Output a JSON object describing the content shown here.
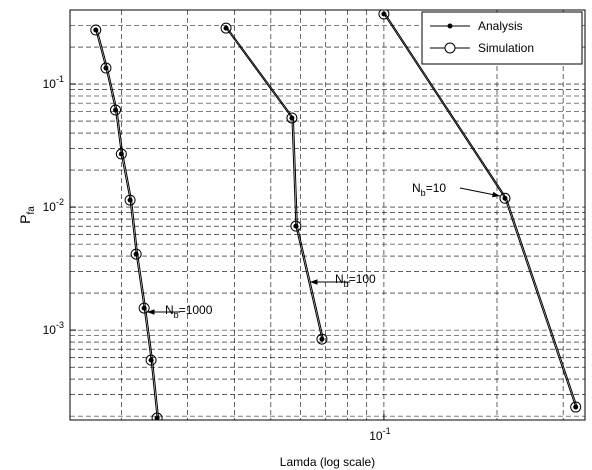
{
  "chart_data": {
    "type": "line",
    "xlabel": "Lamda (log scale)",
    "ylabel": {
      "text": "P",
      "sub": "fa"
    },
    "xscale": "log",
    "yscale": "log",
    "grid": true,
    "minor_grid": true,
    "xlim": [
      0.0146,
      0.343
    ],
    "ylim": [
      0.000186,
      0.4
    ],
    "xticks": [
      {
        "value": 0.1,
        "label": "10",
        "exp": "-1"
      }
    ],
    "yticks": [
      {
        "value": 0.001,
        "label": "10",
        "exp": "-3"
      },
      {
        "value": 0.01,
        "label": "10",
        "exp": "-2"
      },
      {
        "value": 0.1,
        "label": "10",
        "exp": "-1"
      }
    ],
    "legend": "top-right",
    "series": [
      {
        "name": "Analysis",
        "color": "#000000",
        "marker": "dot",
        "curves": [
          {
            "x": [
              0.0171,
              0.0182,
              0.0193,
              0.02,
              0.0211,
              0.0219,
              0.023,
              0.024,
              0.0249
            ],
            "values": [
              0.275,
              0.135,
              0.0615,
              0.027,
              0.0114,
              0.00415,
              0.00151,
              0.00057,
              0.000193
            ]
          },
          {
            "x": [
              0.038,
              0.0569,
              0.0583,
              0.0684
            ],
            "values": [
              0.285,
              0.053,
              0.007,
              0.000845
            ]
          },
          {
            "x": [
              0.1,
              0.21,
              0.324
            ],
            "values": [
              0.371,
              0.0118,
              0.000237
            ]
          }
        ]
      },
      {
        "name": "Simulation",
        "color": "#000000",
        "marker": "circle",
        "curves": [
          {
            "x": [
              0.0171,
              0.0182,
              0.0193,
              0.02,
              0.0211,
              0.0219,
              0.023,
              0.024,
              0.0249
            ],
            "values": [
              0.275,
              0.135,
              0.0615,
              0.027,
              0.0114,
              0.00415,
              0.00151,
              0.00057,
              0.000193
            ]
          },
          {
            "x": [
              0.038,
              0.0569,
              0.0583,
              0.0684
            ],
            "values": [
              0.285,
              0.053,
              0.007,
              0.000845
            ]
          },
          {
            "x": [
              0.1,
              0.21,
              0.324
            ],
            "values": [
              0.371,
              0.0118,
              0.000237
            ]
          }
        ]
      }
    ],
    "annotations": [
      {
        "parts": [
          "N",
          "b",
          "=1000"
        ]
      },
      {
        "parts": [
          "N",
          "b",
          "=100"
        ]
      },
      {
        "parts": [
          "N",
          "b",
          "=10"
        ]
      }
    ]
  }
}
